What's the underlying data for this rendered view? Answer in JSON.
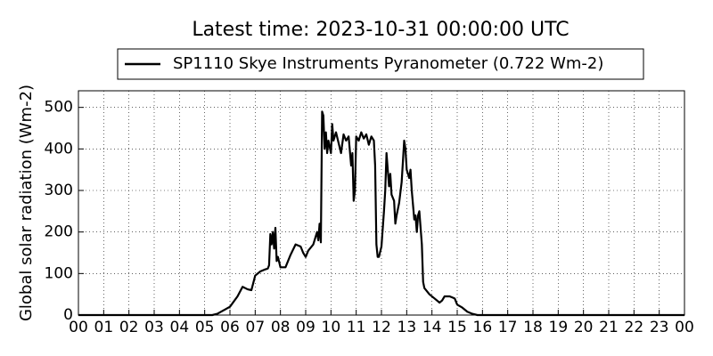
{
  "chart_data": {
    "type": "line",
    "title": "Latest time: 2023-10-31 00:00:00 UTC",
    "y_label": "Global solar radiation (Wm-2)",
    "x": [
      0,
      5.3,
      5.5,
      6.0,
      6.3,
      6.5,
      6.7,
      6.85,
      7.0,
      7.2,
      7.4,
      7.5,
      7.55,
      7.6,
      7.65,
      7.7,
      7.75,
      7.8,
      7.85,
      7.9,
      8.0,
      8.2,
      8.4,
      8.6,
      8.8,
      8.9,
      9.0,
      9.1,
      9.3,
      9.45,
      9.5,
      9.55,
      9.6,
      9.65,
      9.7,
      9.75,
      9.8,
      9.85,
      9.9,
      10.0,
      10.05,
      10.1,
      10.2,
      10.3,
      10.4,
      10.5,
      10.6,
      10.7,
      10.8,
      10.85,
      10.9,
      10.95,
      11.0,
      11.1,
      11.2,
      11.3,
      11.4,
      11.5,
      11.6,
      11.7,
      11.75,
      11.8,
      11.85,
      11.9,
      12.0,
      12.1,
      12.15,
      12.2,
      12.25,
      12.3,
      12.35,
      12.4,
      12.5,
      12.55,
      12.6,
      12.7,
      12.8,
      12.9,
      12.95,
      13.0,
      13.1,
      13.15,
      13.2,
      13.3,
      13.35,
      13.4,
      13.45,
      13.5,
      13.6,
      13.65,
      13.7,
      13.9,
      14.1,
      14.3,
      14.4,
      14.5,
      14.7,
      14.9,
      15.0,
      15.2,
      15.4,
      15.6,
      15.8,
      24
    ],
    "series": [
      {
        "name": "SP1110 Skye Instruments Pyranometer (0.722 Wm-2)",
        "color": "#000000",
        "values": [
          0,
          0,
          3,
          20,
          45,
          68,
          62,
          60,
          95,
          105,
          110,
          112,
          120,
          195,
          170,
          200,
          160,
          210,
          130,
          140,
          115,
          115,
          145,
          170,
          165,
          150,
          140,
          155,
          170,
          200,
          180,
          220,
          175,
          490,
          480,
          400,
          440,
          390,
          420,
          390,
          460,
          420,
          440,
          415,
          390,
          435,
          420,
          430,
          360,
          390,
          275,
          300,
          430,
          420,
          440,
          425,
          435,
          410,
          430,
          420,
          360,
          170,
          140,
          140,
          165,
          250,
          300,
          390,
          350,
          310,
          340,
          290,
          275,
          220,
          240,
          270,
          320,
          420,
          400,
          350,
          330,
          350,
          300,
          230,
          240,
          200,
          240,
          250,
          170,
          80,
          65,
          50,
          40,
          30,
          35,
          45,
          45,
          40,
          25,
          18,
          8,
          3,
          0,
          0
        ]
      }
    ],
    "xlim": [
      0,
      24
    ],
    "ylim": [
      0,
      540
    ],
    "xticks": [
      {
        "value": 0,
        "label": "00"
      },
      {
        "value": 1,
        "label": "01"
      },
      {
        "value": 2,
        "label": "02"
      },
      {
        "value": 3,
        "label": "03"
      },
      {
        "value": 4,
        "label": "04"
      },
      {
        "value": 5,
        "label": "05"
      },
      {
        "value": 6,
        "label": "06"
      },
      {
        "value": 7,
        "label": "07"
      },
      {
        "value": 8,
        "label": "08"
      },
      {
        "value": 9,
        "label": "09"
      },
      10,
      11,
      12,
      13,
      14,
      15,
      16,
      17,
      18,
      19,
      20,
      21,
      22,
      23,
      {
        "value": 24,
        "label": "00"
      }
    ],
    "yticks": [
      0,
      100,
      200,
      300,
      400,
      500
    ],
    "grid": true
  }
}
